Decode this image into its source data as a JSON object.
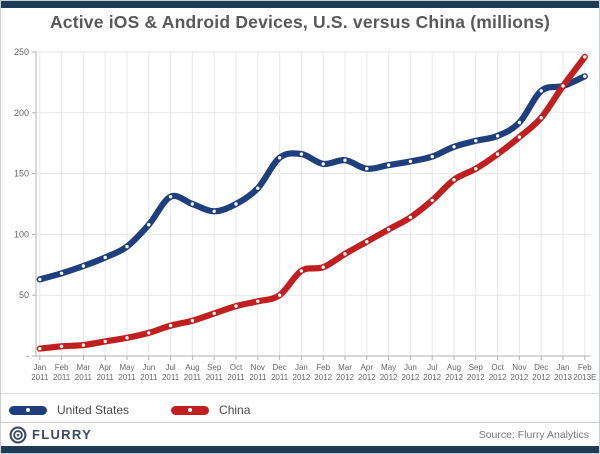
{
  "page": {
    "title": "Active iOS & Android Devices, U.S. versus China (millions)",
    "brand": "FLURRY",
    "source": "Source: Flurry Analytics"
  },
  "colors": {
    "accent_bar": "#1e3c55",
    "us_line": "#1f3e7d",
    "china_line": "#c11f1f",
    "grid": "#e7e7e7",
    "axis": "#b3b3b3",
    "title_text": "#595959",
    "tick_text": "#666666",
    "logo": "#3d4a63"
  },
  "legend": [
    {
      "label": "United States",
      "color": "#1f3e7d"
    },
    {
      "label": "China",
      "color": "#c11f1f"
    }
  ],
  "chart_data": {
    "type": "line",
    "title": "Active iOS & Android Devices, U.S. versus China (millions)",
    "categories": [
      "Jan 2011",
      "Feb 2011",
      "Mar 2011",
      "Apr 2011",
      "May 2011",
      "Jun 2011",
      "Jul 2011",
      "Aug 2011",
      "Sep 2011",
      "Oct 2011",
      "Nov 2011",
      "Dec 2011",
      "Jan 2012",
      "Feb 2012",
      "Mar 2012",
      "Apr 2012",
      "May 2012",
      "Jun 2012",
      "Jul 2012",
      "Aug 2012",
      "Sep 2012",
      "Oct 2012",
      "Nov 2012",
      "Dec 2012",
      "Jan 2013",
      "Feb 2013E"
    ],
    "series": [
      {
        "name": "United States",
        "color": "#1f3e7d",
        "values": [
          63,
          68,
          74,
          81,
          90,
          108,
          131,
          125,
          119,
          125,
          138,
          163,
          166,
          158,
          161,
          154,
          157,
          160,
          164,
          172,
          177,
          181,
          192,
          218,
          222,
          230
        ]
      },
      {
        "name": "China",
        "color": "#c11f1f",
        "values": [
          6,
          8,
          9,
          12,
          15,
          19,
          25,
          29,
          35,
          41,
          45,
          50,
          70,
          73,
          84,
          94,
          104,
          114,
          128,
          145,
          154,
          166,
          180,
          196,
          222,
          246
        ]
      }
    ],
    "ylim": [
      0,
      250
    ],
    "yticks": [
      0,
      50,
      100,
      150,
      200,
      250
    ],
    "ytick_labels": [
      "-",
      "50",
      "100",
      "150",
      "200",
      "250"
    ],
    "grid": "horizontal and vertical light gray",
    "legend_position": "bottom-left",
    "marker": "white dot on thick line"
  }
}
